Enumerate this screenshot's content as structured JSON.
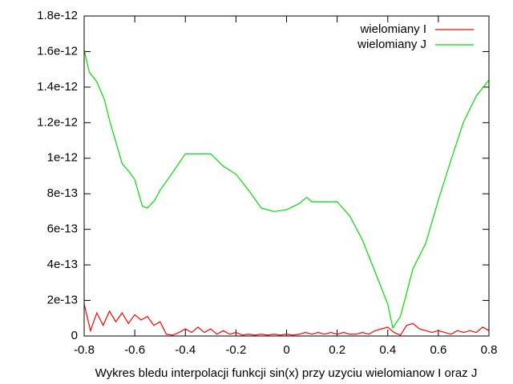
{
  "chart_data": {
    "type": "line",
    "xlabel": "Wykres bledu interpolacji funkcji sin(x) przy uzyciu wielomianow I oraz J",
    "xlim": [
      -0.8,
      0.8
    ],
    "xticks": [
      -0.8,
      -0.6,
      -0.4,
      -0.2,
      0,
      0.2,
      0.4,
      0.6,
      0.8
    ],
    "ylim": [
      0,
      1.8e-12
    ],
    "yticks": [
      0,
      {
        "value": 2e-13,
        "label": "2e-13"
      },
      {
        "value": 4e-13,
        "label": "4e-13"
      },
      {
        "value": 6e-13,
        "label": "6e-13"
      },
      {
        "value": 8e-13,
        "label": "8e-13"
      },
      {
        "value": 1e-12,
        "label": "1e-12"
      },
      {
        "value": 1.2e-12,
        "label": "1.2e-12"
      },
      {
        "value": 1.4e-12,
        "label": "1.4e-12"
      },
      {
        "value": 1.6e-12,
        "label": "1.6e-12"
      },
      {
        "value": 1.8e-12,
        "label": "1.8e-12"
      }
    ],
    "legend": "top-right",
    "series": [
      {
        "name": "wielomiany I",
        "color": "#ff0000",
        "x": [
          -0.8,
          -0.775,
          -0.75,
          -0.725,
          -0.7,
          -0.675,
          -0.65,
          -0.625,
          -0.6,
          -0.575,
          -0.55,
          -0.525,
          -0.5,
          -0.475,
          -0.45,
          -0.425,
          -0.4,
          -0.375,
          -0.35,
          -0.325,
          -0.3,
          -0.275,
          -0.25,
          -0.225,
          -0.2,
          -0.175,
          -0.15,
          -0.125,
          -0.1,
          -0.075,
          -0.05,
          -0.025,
          0,
          0.025,
          0.05,
          0.075,
          0.1,
          0.125,
          0.15,
          0.175,
          0.2,
          0.225,
          0.25,
          0.275,
          0.3,
          0.325,
          0.35,
          0.375,
          0.4,
          0.425,
          0.45,
          0.475,
          0.5,
          0.525,
          0.55,
          0.575,
          0.6,
          0.625,
          0.65,
          0.675,
          0.7,
          0.725,
          0.75,
          0.775,
          0.8
        ],
        "values": [
          1.8e-13,
          3e-14,
          1.3e-13,
          6e-14,
          1.4e-13,
          8e-14,
          1.3e-13,
          7e-14,
          1.2e-13,
          9e-14,
          1.1e-13,
          6e-14,
          8e-14,
          1e-14,
          5e-15,
          2e-14,
          4e-14,
          2e-14,
          5e-14,
          2e-14,
          4e-14,
          1e-14,
          3e-14,
          1e-14,
          2e-14,
          5e-15,
          1e-14,
          5e-15,
          1e-14,
          5e-15,
          1e-14,
          5e-15,
          1e-14,
          5e-15,
          1e-14,
          2e-14,
          1e-14,
          2e-14,
          1e-14,
          2e-14,
          1e-14,
          2e-14,
          1e-14,
          1e-14,
          2e-14,
          1e-14,
          3e-14,
          4e-14,
          5e-14,
          2e-14,
          5e-15,
          6e-14,
          7e-14,
          4e-14,
          3e-14,
          2e-14,
          3e-14,
          2e-14,
          1e-14,
          3e-14,
          2e-14,
          3e-14,
          2e-14,
          5e-14,
          3e-14
        ]
      },
      {
        "name": "wielomiany J",
        "color": "#00dd00",
        "x": [
          -0.8,
          -0.78,
          -0.75,
          -0.72,
          -0.7,
          -0.65,
          -0.62,
          -0.6,
          -0.57,
          -0.55,
          -0.52,
          -0.5,
          -0.45,
          -0.4,
          -0.35,
          -0.3,
          -0.25,
          -0.2,
          -0.15,
          -0.1,
          -0.05,
          0,
          0.05,
          0.08,
          0.1,
          0.15,
          0.2,
          0.25,
          0.3,
          0.35,
          0.4,
          0.42,
          0.45,
          0.5,
          0.55,
          0.6,
          0.65,
          0.7,
          0.75,
          0.8
        ],
        "values": [
          1.61e-12,
          1.485e-12,
          1.43e-12,
          1.33e-12,
          1.215e-12,
          9.7e-13,
          9.2e-13,
          8.8e-13,
          7.3e-13,
          7.2e-13,
          7.65e-13,
          8.2e-13,
          9.2e-13,
          1.025e-12,
          1.025e-12,
          1.025e-12,
          9.55e-13,
          9.1e-13,
          8.2e-13,
          7.2e-13,
          7e-13,
          7.1e-13,
          7.45e-13,
          7.8e-13,
          7.55e-13,
          7.55e-13,
          7.55e-13,
          6.75e-13,
          5.4e-13,
          3.6e-13,
          1.8e-13,
          4.5e-14,
          1.1e-13,
          3.8e-13,
          5.2e-13,
          7.65e-13,
          9.9e-13,
          1.205e-12,
          1.35e-12,
          1.44e-12
        ]
      }
    ]
  }
}
